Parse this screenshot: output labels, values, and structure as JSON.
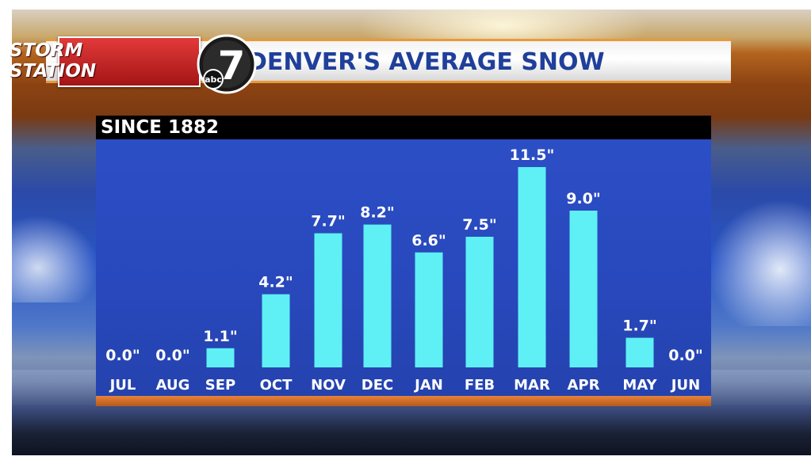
{
  "header": {
    "logo_line1": "STORM",
    "logo_line2": "STATION",
    "network_logo": "abc",
    "channel_number": "7",
    "title": "DENVER'S AVERAGE SNOW"
  },
  "colors": {
    "bar": "#5ef0f4",
    "panel_blue": "#2a4bc0",
    "title_text": "#1f3f9a",
    "accent_orange": "#e07a2c"
  },
  "chart_data": {
    "type": "bar",
    "title": "DENVER'S AVERAGE SNOW",
    "subtitle": "SINCE 1882",
    "categories": [
      "JUL",
      "AUG",
      "SEP",
      "OCT",
      "NOV",
      "DEC",
      "JAN",
      "FEB",
      "MAR",
      "APR",
      "MAY",
      "JUN"
    ],
    "values": [
      0.0,
      0.0,
      1.1,
      4.2,
      7.7,
      8.2,
      6.6,
      7.5,
      11.5,
      9.0,
      1.7,
      0.0
    ],
    "labels": [
      "0.0\"",
      "0.0\"",
      "1.1\"",
      "4.2\"",
      "7.7\"",
      "8.2\"",
      "6.6\"",
      "7.5\"",
      "11.5\"",
      "9.0\"",
      "1.7\"",
      "0.0\""
    ],
    "unit": "inches",
    "xlabel": "",
    "ylabel": "",
    "ylim": [
      0,
      11.5
    ],
    "grid": false,
    "legend": "none"
  }
}
